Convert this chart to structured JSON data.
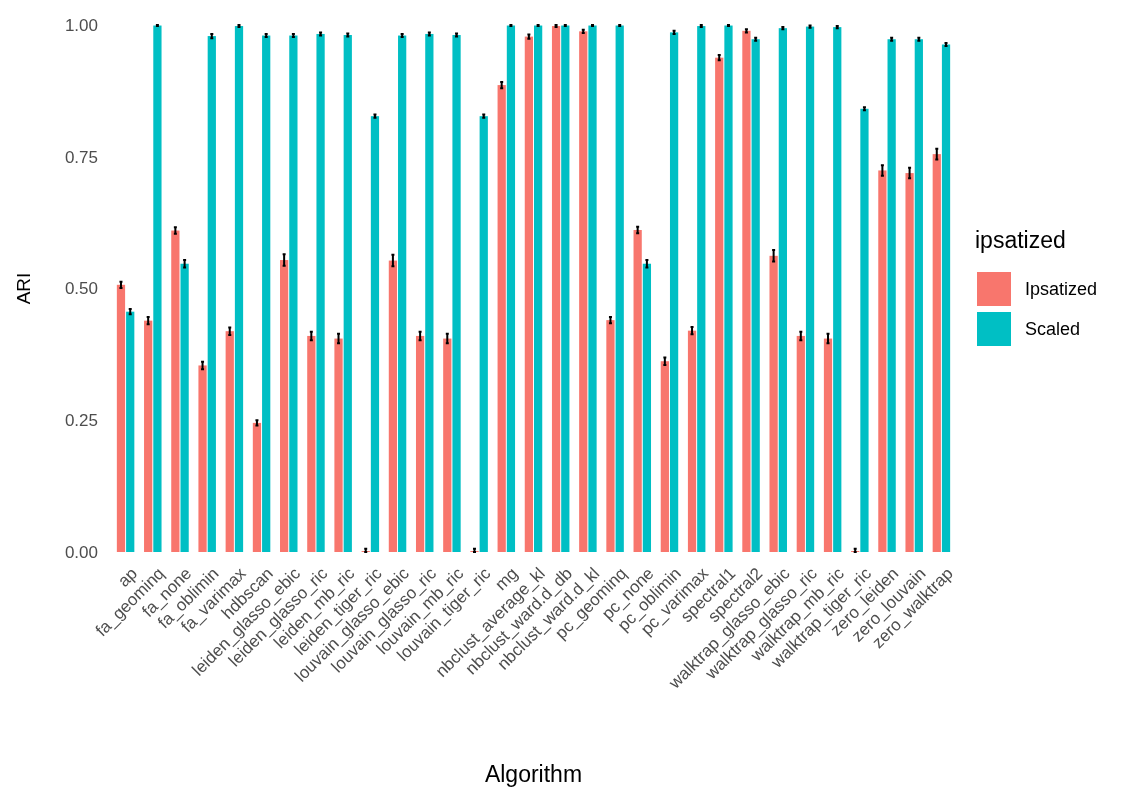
{
  "chart_data": {
    "type": "bar",
    "xlabel": "Algorithm",
    "ylabel": "ARI",
    "legend_title": "ipsatized",
    "legend": "right",
    "categories": [
      "ap",
      "fa_geominq",
      "fa_none",
      "fa_oblimin",
      "fa_varimax",
      "hdbscan",
      "leiden_glasso_ebic",
      "leiden_glasso_ric",
      "leiden_mb_ric",
      "leiden_tiger_ric",
      "louvain_glasso_ebic",
      "louvain_glasso_ric",
      "louvain_mb_ric",
      "louvain_tiger_ric",
      "mg",
      "nbclust_average_kl",
      "nbclust_ward.d_db",
      "nbclust_ward.d_kl",
      "pc_geominq",
      "pc_none",
      "pc_oblimin",
      "pc_varimax",
      "spectral1",
      "spectral2",
      "walktrap_glasso_ebic",
      "walktrap_glasso_ric",
      "walktrap_mb_ric",
      "walktrap_tiger_ric",
      "zero_leiden",
      "zero_louvain",
      "zero_walktrap"
    ],
    "ylim": [
      0,
      1
    ],
    "yticks": [
      {
        "value": 0,
        "label": "0.00"
      },
      {
        "value": 0.25,
        "label": "0.25"
      },
      {
        "value": 0.5,
        "label": "0.50"
      },
      {
        "value": 0.75,
        "label": "0.75"
      },
      {
        "value": 1,
        "label": "1.00"
      }
    ],
    "series": [
      {
        "name": "Ipsatized",
        "color": "#f8766d",
        "values": [
          0.507,
          0.439,
          0.61,
          0.354,
          0.419,
          0.245,
          0.554,
          0.41,
          0.405,
          0,
          0.553,
          0.41,
          0.405,
          0,
          0.886,
          0.978,
          0.998,
          0.988,
          0.44,
          0.611,
          0.362,
          0.42,
          0.938,
          0.989,
          0.562,
          0.41,
          0.405,
          0,
          0.724,
          0.719,
          0.755
        ],
        "errors": [
          0.006,
          0.007,
          0.006,
          0.007,
          0.007,
          0.005,
          0.011,
          0.008,
          0.009,
          [
            0,
            0.006
          ],
          0.011,
          0.008,
          0.009,
          [
            0,
            0.006
          ],
          0.006,
          0.004,
          0.002,
          0.003,
          0.006,
          0.006,
          0.007,
          0.007,
          0.005,
          0.003,
          0.011,
          0.008,
          0.009,
          [
            0,
            0.006
          ],
          0.01,
          0.01,
          0.01
        ]
      },
      {
        "name": "Scaled",
        "color": "#00bfc4",
        "values": [
          0.456,
          0.999,
          0.547,
          0.979,
          0.998,
          0.98,
          0.98,
          0.983,
          0.981,
          0.827,
          0.98,
          0.983,
          0.981,
          0.827,
          0.999,
          0.999,
          0.999,
          0.999,
          0.999,
          0.547,
          0.986,
          0.998,
          0.999,
          0.973,
          0.994,
          0.997,
          0.996,
          0.841,
          0.973,
          0.973,
          0.963
        ],
        "errors": [
          0.005,
          0.001,
          0.007,
          0.004,
          0.002,
          0.003,
          0.003,
          0.003,
          0.003,
          0.003,
          0.003,
          0.003,
          0.003,
          0.003,
          0.001,
          0.001,
          0.001,
          0.001,
          0.001,
          0.007,
          0.003,
          0.002,
          0.001,
          0.003,
          0.002,
          0.002,
          0.002,
          0.003,
          0.003,
          0.003,
          0.003
        ]
      }
    ]
  }
}
